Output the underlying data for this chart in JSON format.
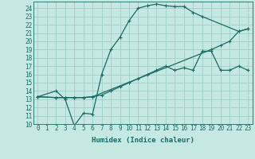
{
  "bg_color": "#c5e8e2",
  "grid_color": "#9ecfc8",
  "line_color": "#1a6b65",
  "xlabel": "Humidex (Indice chaleur)",
  "xlim": [
    -0.5,
    23.5
  ],
  "ylim": [
    10,
    24.8
  ],
  "xticks": [
    0,
    1,
    2,
    3,
    4,
    5,
    6,
    7,
    8,
    9,
    10,
    11,
    12,
    13,
    14,
    15,
    16,
    17,
    18,
    19,
    20,
    21,
    22,
    23
  ],
  "yticks": [
    10,
    11,
    12,
    13,
    14,
    15,
    16,
    17,
    18,
    19,
    20,
    21,
    22,
    23,
    24
  ],
  "line1_x": [
    0,
    2,
    3,
    4,
    5,
    6,
    7,
    8,
    9,
    10,
    11,
    12,
    13,
    14,
    15,
    16,
    17,
    18,
    22,
    23
  ],
  "line1_y": [
    13.3,
    14,
    13,
    9.8,
    11.3,
    11.2,
    16,
    19,
    20.5,
    22.5,
    24,
    24.3,
    24.5,
    24.3,
    24.2,
    24.2,
    23.5,
    23,
    21.2,
    21.5
  ],
  "line2_x": [
    0,
    2,
    3,
    4,
    5,
    6,
    19,
    20,
    21,
    22,
    23
  ],
  "line2_y": [
    13.3,
    13.2,
    13.2,
    13.2,
    13.2,
    13.3,
    19,
    19.5,
    20,
    21.2,
    21.5
  ],
  "line3_x": [
    0,
    2,
    3,
    4,
    5,
    6,
    7,
    8,
    9,
    10,
    11,
    12,
    13,
    14,
    15,
    16,
    17,
    18,
    19,
    20,
    21,
    22,
    23
  ],
  "line3_y": [
    13.3,
    13.2,
    13.2,
    13.2,
    13.2,
    13.3,
    13.5,
    14,
    14.5,
    15,
    15.5,
    16,
    16.5,
    17,
    16.5,
    16.8,
    16.5,
    18.8,
    18.8,
    16.5,
    16.5,
    17,
    16.5
  ]
}
